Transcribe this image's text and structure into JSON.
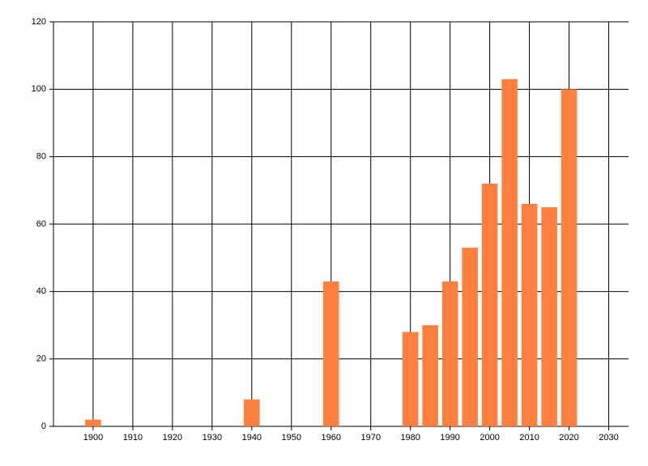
{
  "chart_data": {
    "type": "bar",
    "x": [
      1900,
      1940,
      1960,
      1980,
      1985,
      1990,
      1995,
      2000,
      2005,
      2010,
      2015,
      2020
    ],
    "values": [
      2,
      8,
      43,
      28,
      30,
      43,
      53,
      72,
      103,
      66,
      65,
      100
    ],
    "color": "#ff7f3f",
    "bar_width": 4,
    "xlim": [
      1890,
      2035
    ],
    "xticks": [
      1900,
      1910,
      1920,
      1930,
      1940,
      1950,
      1960,
      1970,
      1980,
      1990,
      2000,
      2010,
      2020,
      2030
    ],
    "ylim": [
      0,
      120
    ],
    "yticks": [
      0,
      20,
      40,
      60,
      80,
      100,
      120
    ],
    "grid": true
  }
}
